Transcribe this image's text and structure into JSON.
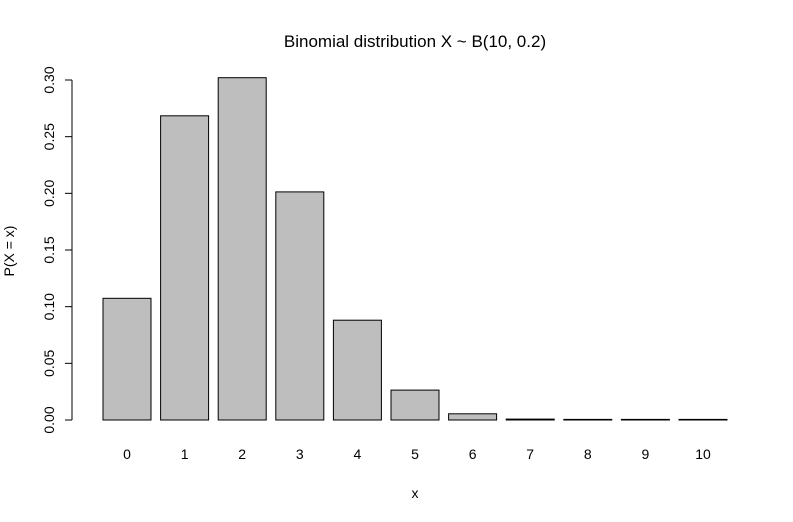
{
  "chart_data": {
    "type": "bar",
    "title": "Binomial distribution X ~  B(10, 0.2)",
    "xlabel": "x",
    "ylabel": "P(X = x)",
    "categories": [
      "0",
      "1",
      "2",
      "3",
      "4",
      "5",
      "6",
      "7",
      "8",
      "9",
      "10"
    ],
    "values": [
      0.1074,
      0.2684,
      0.302,
      0.2013,
      0.0881,
      0.0264,
      0.0055,
      0.0008,
      0.0001,
      0.0,
      0.0
    ],
    "ylim": [
      0,
      0.3
    ],
    "yticks": [
      "0.00",
      "0.05",
      "0.10",
      "0.15",
      "0.20",
      "0.25",
      "0.30"
    ],
    "bar_color": "#bebebe",
    "grid": false,
    "legend": "none"
  }
}
